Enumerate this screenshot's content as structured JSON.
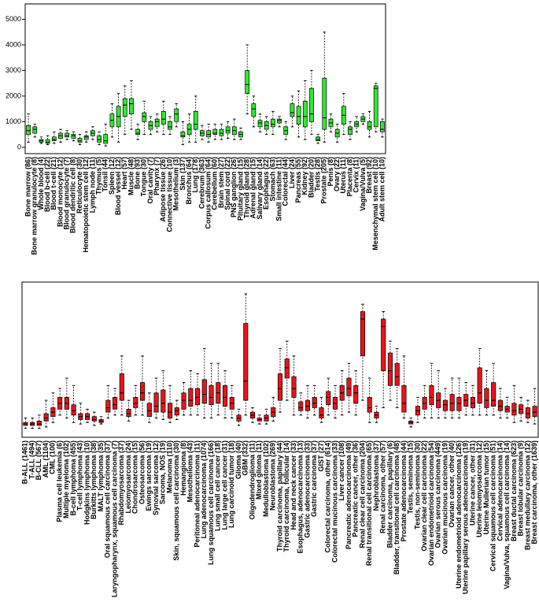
{
  "chart_data": [
    {
      "type": "box",
      "color": "#33e833",
      "ylim": [
        -250,
        5600
      ],
      "yticks": [
        0,
        1000,
        2000,
        3000,
        4000,
        5000
      ],
      "categories": [
        "Bone marrow (86)",
        "Bone marrow granulocyte (8)",
        "Whole blood (4)",
        "Blood b-cell (22)",
        "Blood t-cell (21)",
        "Blood monocyte (12)",
        "Blood granulocyte (7)",
        "Blood dendritic cell (8)",
        "Reticulocyte (30)",
        "Hematopoietic stem cell (12)",
        "Lymph node (11)",
        "Thymus (5)",
        "Tonsil (44)",
        "Spleen (12)",
        "Blood vessel (12)",
        "Heart (57)",
        "Muscle (48)",
        "Bone (93)",
        "Tongue (30)",
        "Oral cavity (7)",
        "Pharynx (7)",
        "Adipose tissue (26)",
        "Connective tissue (10)",
        "Mesothelium (3)",
        "Skin (137)",
        "Bronchus (64)",
        "Lung (178)",
        "Cerebrum (363)",
        "Corpus callosum (64)",
        "Cerebellum (60)",
        "Brain stem (27)",
        "Spinal cord (22)",
        "PNS ganglion (26)",
        "Pituitary gland (15)",
        "Thyroid gland (28)",
        "Adrenal gland (15)",
        "Salivary gland (14)",
        "Esophagus (22)",
        "Stomach (63)",
        "Small intestine (11)",
        "Colorectal (44)",
        "Liver (24)",
        "Pancreas (55)",
        "Kidney (92)",
        "Bladder (20)",
        "Testis (28)",
        "Prostate (205)",
        "Penis (8)",
        "Ovary (22)",
        "Uterus (11)",
        "Placenta (8)",
        "Cervix (11)",
        "Vagina/Vulva (5)",
        "Breast (92)",
        "Mesenchymal stem cell (10)",
        "Adult stem cell (10)"
      ],
      "boxes": [
        [
          200,
          500,
          650,
          850,
          1300
        ],
        [
          400,
          550,
          700,
          800,
          900
        ],
        [
          150,
          200,
          250,
          300,
          400
        ],
        [
          100,
          150,
          200,
          300,
          450
        ],
        [
          150,
          250,
          300,
          400,
          600
        ],
        [
          200,
          350,
          450,
          550,
          700
        ],
        [
          300,
          400,
          450,
          550,
          650
        ],
        [
          250,
          350,
          450,
          500,
          600
        ],
        [
          100,
          200,
          250,
          350,
          500
        ],
        [
          200,
          300,
          400,
          450,
          600
        ],
        [
          300,
          450,
          550,
          650,
          800
        ],
        [
          100,
          200,
          300,
          450,
          600
        ],
        [
          50,
          150,
          250,
          500,
          900
        ],
        [
          400,
          800,
          1050,
          1300,
          1700
        ],
        [
          200,
          800,
          1200,
          1600,
          2100
        ],
        [
          500,
          1200,
          1650,
          1900,
          2400
        ],
        [
          700,
          1300,
          1700,
          1900,
          2600
        ],
        [
          300,
          500,
          550,
          700,
          900
        ],
        [
          500,
          1000,
          1200,
          1350,
          1800
        ],
        [
          500,
          700,
          850,
          1000,
          1200
        ],
        [
          600,
          800,
          1000,
          1100,
          1300
        ],
        [
          500,
          900,
          1100,
          1400,
          1800
        ],
        [
          500,
          700,
          800,
          1000,
          1200
        ],
        [
          800,
          1000,
          1300,
          1500,
          1700
        ],
        [
          100,
          400,
          450,
          600,
          1000
        ],
        [
          200,
          500,
          700,
          900,
          1300
        ],
        [
          200,
          700,
          900,
          1400,
          2000
        ],
        [
          300,
          450,
          550,
          650,
          850
        ],
        [
          200,
          400,
          500,
          650,
          900
        ],
        [
          300,
          500,
          550,
          700,
          900
        ],
        [
          300,
          450,
          550,
          700,
          900
        ],
        [
          350,
          550,
          650,
          800,
          1000
        ],
        [
          300,
          500,
          650,
          800,
          1100
        ],
        [
          300,
          400,
          500,
          600,
          750
        ],
        [
          1300,
          2100,
          2450,
          3000,
          4000
        ],
        [
          800,
          1200,
          1500,
          1700,
          2000
        ],
        [
          600,
          800,
          950,
          1050,
          1300
        ],
        [
          500,
          700,
          850,
          1000,
          1200
        ],
        [
          500,
          800,
          900,
          1100,
          1400
        ],
        [
          800,
          950,
          1050,
          1100,
          1200
        ],
        [
          300,
          500,
          650,
          800,
          1000
        ],
        [
          800,
          1200,
          1350,
          1700,
          2000
        ],
        [
          400,
          900,
          1200,
          1600,
          2200
        ],
        [
          300,
          800,
          1200,
          1800,
          2600
        ],
        [
          500,
          1000,
          1300,
          2300,
          3000
        ],
        [
          150,
          250,
          300,
          400,
          500
        ],
        [
          200,
          700,
          1150,
          2700,
          4500
        ],
        [
          600,
          800,
          950,
          1100,
          1300
        ],
        [
          200,
          400,
          550,
          700,
          900
        ],
        [
          500,
          900,
          1250,
          1600,
          2100
        ],
        [
          300,
          500,
          700,
          800,
          1000
        ],
        [
          600,
          800,
          900,
          1000,
          1200
        ],
        [
          900,
          1000,
          1100,
          1200,
          1300
        ],
        [
          400,
          700,
          800,
          1000,
          1400
        ],
        [
          600,
          800,
          2300,
          2400,
          2500
        ],
        [
          400,
          600,
          700,
          1000,
          1100
        ]
      ]
    },
    {
      "type": "box",
      "color": "#e8141a",
      "ylim": [
        -5,
        100
      ],
      "categories": [
        "B-ALL (1461)",
        "T-ALL (494)",
        "B-CLL (567)",
        "AML (1104)",
        "CML (100)",
        "Plasma cell leukemia (6)",
        "Multiple myeloma (102)",
        "B-cell lymphoma (455)",
        "T-cell lymphoma (43)",
        "Hodgkins lymphoma (10)",
        "Burkitts lymphoma (38)",
        "MALT lymphoma (35)",
        "Oral squamous cell carcinoma (37)",
        "Laryngopharynx, squamous cell carcinoma (7)",
        "Rhabdomyosarcoma (37)",
        "Leiomyosarcoma (24)",
        "Chondrosarcoma (15)",
        "Osteosarcoma (56)",
        "Ewings sarcoma (19)",
        "Synovial sarcoma (12)",
        "Sarcoma, NOS (19)",
        "Melanoma (110)",
        "Skin, squamous cell carcinoma (30)",
        "Hemangioma (8)",
        "Mesothelioma (43)",
        "Peritoneal adenocarcinoma (11)",
        "Lung adenocarcinoma (1074)",
        "Lung squamous cell carcinoma (166)",
        "Lung small cell cancer (18)",
        "Lung large cell cancer (31)",
        "Lung carcinoid tumor (18)",
        "Glioma (40)",
        "GBM (332)",
        "Oligodendroglioma (11)",
        "Mixed glioma (11)",
        "Medulloblastoma (102)",
        "Neuroblastoma (269)",
        "Thyroid carcinoma, papillary (44)",
        "Thyroid carcinoma, follicular (14)",
        "Head and neck cancer (33)",
        "Esophagus, adenocarcinoma (13)",
        "Gastric adenocarcinoma (33)",
        "Gastric carcinoma (37)",
        "GIST (27)",
        "Colorectal carcinoma, other (614)",
        "Colorectal mucinous carcinoma (33)",
        "Liver cancer (108)",
        "Pancreatic adenocarcinoma (49)",
        "Pancreatic cancer, other (36)",
        "Renal clear cell carcinoma (204)",
        "Renal transitional cell carcinoma (65)",
        "Nephroblastoma (37)",
        "Renal carcinoma, other (57)",
        "Bladder carcinoma, papillary (6)",
        "Bladder, transitional cell carcinoma (48)",
        "Prostate adenocarcinoma (44)",
        "Testis, seminoma (15)",
        "Testis, non-seminoma (30)",
        "Ovarian clear cell carcinoma (22)",
        "Ovarian endometrioid carcinoma (54)",
        "Ovarian serous carcinoma (449)",
        "Ovarian mucinous carcinoma (19)",
        "Ovarian cancer, other (40)",
        "Uterine endometrioid adenocarcinoma (126)",
        "Uterine papillary serous adenocarcinoma (19)",
        "Uterine cancer, other (31)",
        "Uterine leiomyosarcoma (12)",
        "Uterine Mullerian tumor (15)",
        "Cervical squamous cell carcinoma (51)",
        "Cervical adenocarcinoma (14)",
        "Vagina/Vulva, squamous cell carcinoma (14)",
        "Breast ductal carcinoma (623)",
        "Breast lobular carcinoma (9)",
        "Breast medullary carcinoma (12)",
        "Breast carcinoma, other (1639)"
      ],
      "boxes": [
        [
          1,
          3,
          4,
          5,
          8
        ],
        [
          1,
          3,
          4,
          5,
          8
        ],
        [
          1,
          3,
          4,
          6,
          10
        ],
        [
          2,
          6,
          8,
          11,
          20
        ],
        [
          5,
          9,
          12,
          15,
          25
        ],
        [
          10,
          14,
          18,
          22,
          28
        ],
        [
          8,
          14,
          18,
          22,
          35
        ],
        [
          5,
          10,
          13,
          17,
          30
        ],
        [
          4,
          7,
          9,
          11,
          18
        ],
        [
          5,
          7,
          9,
          11,
          14
        ],
        [
          3,
          6,
          7,
          9,
          12
        ],
        [
          4,
          5,
          6,
          7,
          9
        ],
        [
          8,
          12,
          15,
          20,
          30
        ],
        [
          10,
          14,
          17,
          22,
          28
        ],
        [
          10,
          20,
          25,
          38,
          50
        ],
        [
          6,
          9,
          11,
          14,
          20
        ],
        [
          10,
          15,
          18,
          22,
          30
        ],
        [
          10,
          20,
          25,
          32,
          50
        ],
        [
          5,
          9,
          13,
          18,
          25
        ],
        [
          8,
          12,
          16,
          25,
          35
        ],
        [
          7,
          12,
          18,
          27,
          40
        ],
        [
          5,
          8,
          12,
          18,
          30
        ],
        [
          7,
          10,
          13,
          15,
          20
        ],
        [
          10,
          14,
          20,
          25,
          32
        ],
        [
          10,
          16,
          20,
          28,
          40
        ],
        [
          10,
          17,
          22,
          28,
          38
        ],
        [
          8,
          18,
          24,
          34,
          55
        ],
        [
          8,
          17,
          22,
          30,
          45
        ],
        [
          10,
          18,
          25,
          32,
          45
        ],
        [
          8,
          16,
          22,
          30,
          40
        ],
        [
          8,
          14,
          18,
          22,
          30
        ],
        [
          3,
          6,
          8,
          10,
          14
        ],
        [
          10,
          20,
          33,
          72,
          92
        ],
        [
          5,
          8,
          10,
          12,
          15
        ],
        [
          4,
          6,
          7,
          8,
          10
        ],
        [
          4,
          6,
          8,
          10,
          14
        ],
        [
          6,
          9,
          12,
          15,
          22
        ],
        [
          12,
          20,
          28,
          38,
          55
        ],
        [
          20,
          35,
          42,
          48,
          60
        ],
        [
          10,
          22,
          28,
          36,
          50
        ],
        [
          10,
          13,
          15,
          19,
          25
        ],
        [
          8,
          13,
          16,
          20,
          30
        ],
        [
          10,
          15,
          18,
          22,
          30
        ],
        [
          5,
          8,
          10,
          15,
          22
        ],
        [
          10,
          17,
          22,
          26,
          35
        ],
        [
          8,
          14,
          18,
          22,
          30
        ],
        [
          10,
          20,
          25,
          30,
          40
        ],
        [
          12,
          23,
          28,
          35,
          45
        ],
        [
          10,
          18,
          25,
          30,
          40
        ],
        [
          20,
          50,
          75,
          80,
          85
        ],
        [
          5,
          12,
          15,
          22,
          35
        ],
        [
          5,
          8,
          10,
          12,
          16
        ],
        [
          15,
          40,
          70,
          75,
          80
        ],
        [
          20,
          30,
          40,
          52,
          60
        ],
        [
          15,
          30,
          36,
          45,
          55
        ],
        [
          8,
          12,
          18,
          30,
          50
        ],
        [
          2,
          4,
          5,
          6,
          8
        ],
        [
          5,
          10,
          13,
          16,
          22
        ],
        [
          8,
          14,
          18,
          22,
          30
        ],
        [
          8,
          17,
          22,
          30,
          45
        ],
        [
          8,
          15,
          20,
          25,
          40
        ],
        [
          8,
          13,
          17,
          20,
          28
        ],
        [
          8,
          13,
          18,
          24,
          35
        ],
        [
          8,
          13,
          18,
          22,
          35
        ],
        [
          10,
          16,
          20,
          24,
          32
        ],
        [
          10,
          15,
          18,
          22,
          30
        ],
        [
          10,
          18,
          25,
          42,
          55
        ],
        [
          10,
          15,
          20,
          28,
          40
        ],
        [
          10,
          16,
          20,
          32,
          45
        ],
        [
          8,
          13,
          16,
          20,
          28
        ],
        [
          8,
          12,
          14,
          16,
          22
        ],
        [
          5,
          10,
          13,
          18,
          30
        ],
        [
          6,
          11,
          14,
          17,
          22
        ],
        [
          5,
          8,
          11,
          15,
          20
        ],
        [
          4,
          9,
          12,
          16,
          28
        ]
      ]
    }
  ]
}
